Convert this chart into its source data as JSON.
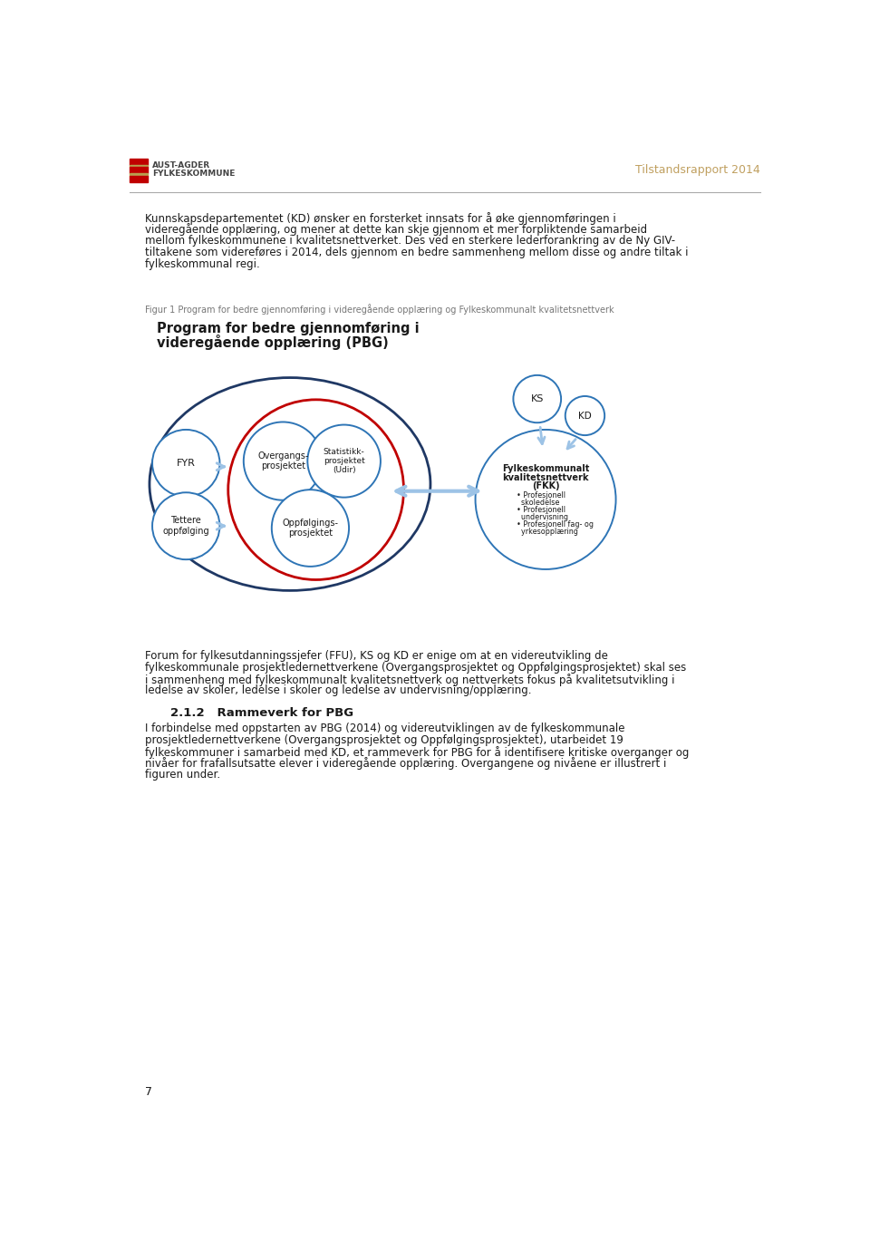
{
  "header_title": "Tilstandsrapport 2014",
  "header_org1": "AUST-AGDER",
  "header_org2": "FYLKESKOMMUNE",
  "separator_color": "#aaaaaa",
  "page_bg": "#ffffff",
  "figure_caption": "Figur 1 Program for bedre gjennomføring i videregående opplæring og Fylkeskommunalt kvalitetsnettverk",
  "pbg_title_line1": "Program for bedre gjennomføring i",
  "pbg_title_line2": "videregående opplæring (PBG)",
  "body_lines": [
    "Kunnskapsdepartementet (KD) ønsker en forsterket innsats for å øke gjennomføringen i",
    "videregående opplæring, og mener at dette kan skje gjennom et mer forpliktende samarbeid",
    "mellom fylkeskommunene i kvalitetsnettverket. Des ved en sterkere lederforankring av de Ny GIV-",
    "tiltakene som videreføres i 2014, dels gjennom en bedre sammenheng mellom disse og andre tiltak i",
    "fylkeskommunal regi."
  ],
  "bottom_text1_lines": [
    "Forum for fylkesutdanningssjefer (FFU), KS og KD er enige om at en videreutvikling de",
    "fylkeskommunale prosjektledernettverkene (Overgangsprosjektet og Oppfølgingsprosjektet) skal ses",
    "i sammenheng med fylkeskommunalt kvalitetsnettverk og nettverkets fokus på kvalitetsutvikling i",
    "ledelse av skoler, ledelse i skoler og ledelse av undervisning/opplæring."
  ],
  "section_title": "2.1.2   Rammeverk for PBG",
  "bottom_text2_lines": [
    "I forbindelse med oppstarten av PBG (2014) og videreutviklingen av de fylkeskommunale",
    "prosjektledernettverkene (Overgangsprosjektet og Oppfølgingsprosjektet), utarbeidet 19",
    "fylkeskommuner i samarbeid med KD, et rammeverk for PBG for å identifisere kritiske overganger og",
    "nivåer for frafallsutsatte elever i videregående opplæring. Overgangene og nivåene er illustrert i",
    "figuren under."
  ],
  "page_number": "7",
  "blue_dark": "#1f3864",
  "blue_medium": "#2e75b6",
  "blue_light": "#9dc3e6",
  "red_circle": "#c00000",
  "text_dark": "#1a1a1a",
  "text_gray": "#666666",
  "gold": "#b8860b",
  "header_gold": "#c0a060"
}
